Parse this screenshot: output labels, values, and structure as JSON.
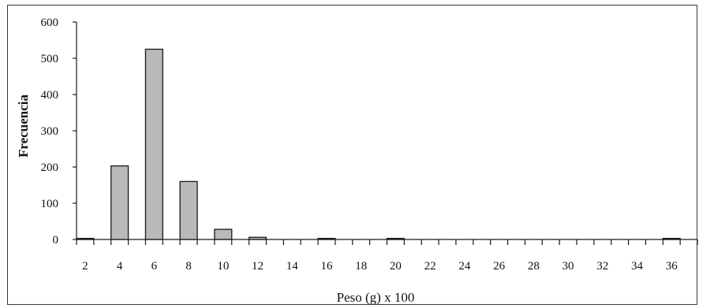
{
  "chart_data": {
    "type": "bar",
    "title": "",
    "xlabel": "Peso (g) x 100",
    "ylabel": "Frecuencia",
    "ylim": [
      0,
      600
    ],
    "yticks": [
      0,
      100,
      200,
      300,
      400,
      500,
      600
    ],
    "xtick_labels": [
      "2",
      "4",
      "6",
      "8",
      "10",
      "12",
      "14",
      "16",
      "18",
      "20",
      "22",
      "24",
      "26",
      "28",
      "30",
      "32",
      "34",
      "36"
    ],
    "bar_values": [
      3,
      0,
      203,
      0,
      525,
      0,
      160,
      0,
      28,
      0,
      6,
      0,
      0,
      0,
      3,
      0,
      0,
      0,
      3,
      0,
      0,
      0,
      0,
      0,
      0,
      0,
      0,
      0,
      0,
      0,
      0,
      0,
      0,
      0,
      3,
      0
    ],
    "bar_color": "#b9b9b9",
    "bar_edge_color": "#1a1a1a",
    "grid": false,
    "legend": "none"
  }
}
